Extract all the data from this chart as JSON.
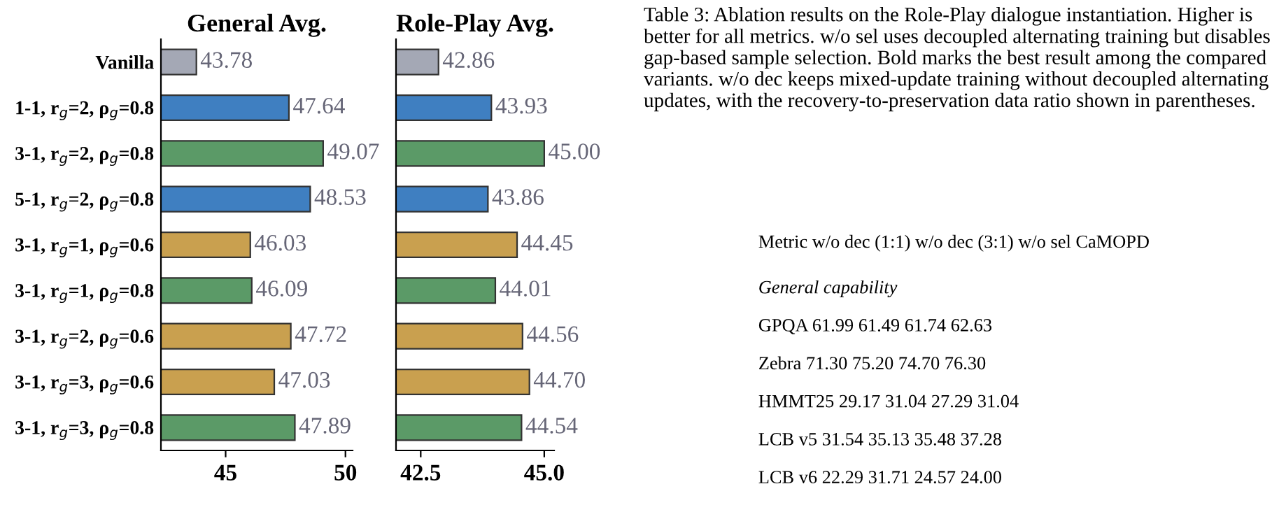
{
  "chart_data": [
    {
      "type": "bar",
      "orientation": "horizontal",
      "title": "General Avg.",
      "categories": [
        "Vanilla",
        "1-1, r$_{g}$=2, ρ$_{g}$=0.8",
        "3-1, r$_{g}$=2, ρ$_{g}$=0.8",
        "5-1, r$_{g}$=2, ρ$_{g}$=0.8",
        "3-1, r$_{g}$=1, ρ$_{g}$=0.6",
        "3-1, r$_{g}$=1, ρ$_{g}$=0.8",
        "3-1, r$_{g}$=2, ρ$_{g}$=0.6",
        "3-1, r$_{g}$=3, ρ$_{g}$=0.6",
        "3-1, r$_{g}$=3, ρ$_{g}$=0.8"
      ],
      "values": [
        43.78,
        47.64,
        49.07,
        48.53,
        46.03,
        46.09,
        47.72,
        47.03,
        47.89
      ],
      "value_labels": [
        "43.78",
        "47.64",
        "49.07",
        "48.53",
        "46.03",
        "46.09",
        "47.72",
        "47.03",
        "47.89"
      ],
      "colors": [
        "#a4a8b5",
        "#3f7fc1",
        "#5b9a67",
        "#3f7fc1",
        "#c9a04f",
        "#5b9a67",
        "#c9a04f",
        "#c9a04f",
        "#5b9a67"
      ],
      "xlim": [
        42.3,
        50.3
      ],
      "xticks": [
        45,
        50
      ],
      "grid": false,
      "legend": false
    },
    {
      "type": "bar",
      "orientation": "horizontal",
      "title": "Role-Play Avg.",
      "categories": [
        null,
        null,
        null,
        null,
        null,
        null,
        null,
        null,
        null
      ],
      "values": [
        42.86,
        43.93,
        45.0,
        43.86,
        44.45,
        44.01,
        44.56,
        44.7,
        44.54
      ],
      "value_labels": [
        "42.86",
        "43.93",
        "45.00",
        "43.86",
        "44.45",
        "44.01",
        "44.56",
        "44.70",
        "44.54"
      ],
      "colors": [
        "#a4a8b5",
        "#3f7fc1",
        "#5b9a67",
        "#3f7fc1",
        "#c9a04f",
        "#5b9a67",
        "#c9a04f",
        "#c9a04f",
        "#5b9a67"
      ],
      "xlim": [
        42.0,
        45.2
      ],
      "xticks": [
        {
          "value": 42.5,
          "label": "42.5"
        },
        {
          "value": 45.0,
          "label": "45.0"
        }
      ],
      "grid": false,
      "legend": false
    },
    {
      "type": "other",
      "annotations": [
        "Table 3: Ablation results on the Role-Play dialogue instantiation. Higher is better for all metrics. w/o sel uses decoupled alternating training but disables gap-based sample selection. Bold marks the best result among the compared variants. w/o dec keeps mixed-update training without decoupled alternating updates, with the recovery-to-preservation data ratio shown in parentheses.",
        "Metric w/o dec (1:1) w/o dec (3:1) w/o sel CaMOPD",
        "General capability",
        "GPQA 61.99 61.49 61.74 62.63",
        "Zebra 71.30 75.20 74.70 76.30",
        "HMMT25 29.17 31.04 27.29 31.04",
        "LCB v5 31.54 35.13 35.48 37.28",
        "LCB v6 22.29 31.71 24.57 24.00"
      ]
    }
  ]
}
